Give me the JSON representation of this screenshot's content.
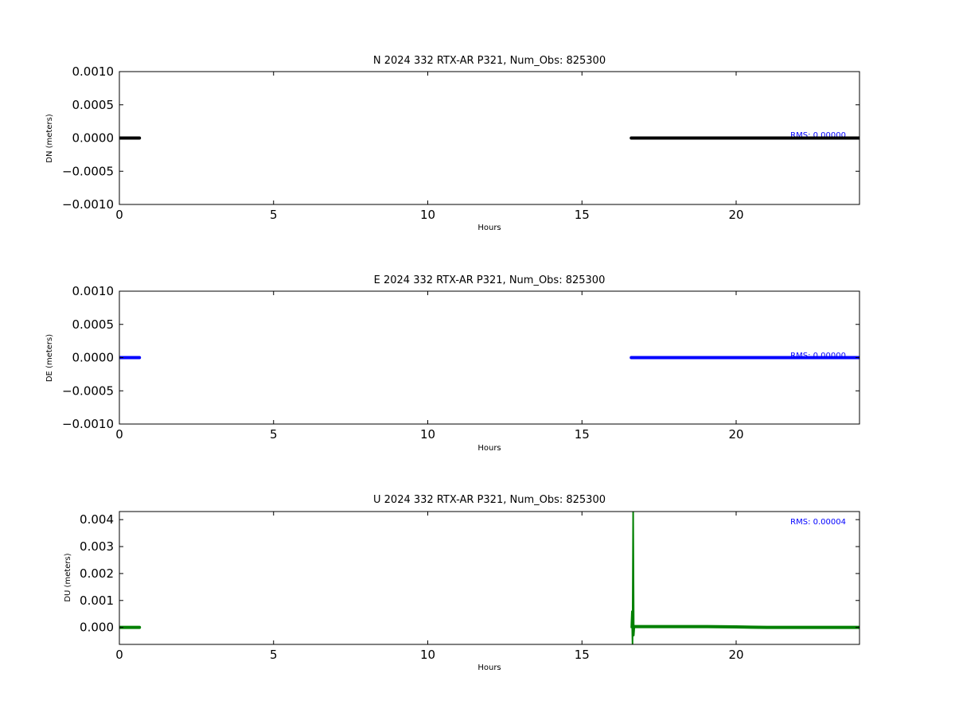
{
  "chart_data": [
    {
      "type": "scatter",
      "title": "N 2024 332 RTX-AR  P321, Num_Obs: 825300",
      "xlabel": "Hours",
      "ylabel": "DN (meters)",
      "xlim": [
        0,
        24
      ],
      "ylim": [
        -0.001,
        0.001
      ],
      "xticks": [
        0,
        5,
        10,
        15,
        20
      ],
      "xtick_labels": [
        "0",
        "5",
        "10",
        "15",
        "20"
      ],
      "yticks": [
        0.001,
        0.0005,
        0.0,
        -0.0005,
        -0.001
      ],
      "ytick_labels": [
        "0.0010",
        "0.0005",
        "0.0000",
        "−0.0005",
        "−0.0010"
      ],
      "grid": false,
      "color": "#000000",
      "annotation": "RMS:  0.00000",
      "annotation_color": "#0000ff",
      "series": [
        {
          "x": [
            0,
            0.65
          ],
          "y": [
            0.0,
            0.0
          ]
        },
        {
          "x": [
            16.6,
            24
          ],
          "y": [
            0.0,
            0.0
          ]
        }
      ]
    },
    {
      "type": "scatter",
      "title": "E 2024 332 RTX-AR  P321, Num_Obs: 825300",
      "xlabel": "Hours",
      "ylabel": "DE (meters)",
      "xlim": [
        0,
        24
      ],
      "ylim": [
        -0.001,
        0.001
      ],
      "xticks": [
        0,
        5,
        10,
        15,
        20
      ],
      "xtick_labels": [
        "0",
        "5",
        "10",
        "15",
        "20"
      ],
      "yticks": [
        0.001,
        0.0005,
        0.0,
        -0.0005,
        -0.001
      ],
      "ytick_labels": [
        "0.0010",
        "0.0005",
        "0.0000",
        "−0.0005",
        "−0.0010"
      ],
      "grid": false,
      "color": "#0000ff",
      "annotation": "RMS:  0.00000",
      "annotation_color": "#0000ff",
      "series": [
        {
          "x": [
            0,
            0.65
          ],
          "y": [
            0.0,
            0.0
          ]
        },
        {
          "x": [
            16.6,
            24
          ],
          "y": [
            0.0,
            0.0
          ]
        }
      ]
    },
    {
      "type": "scatter",
      "title": "U 2024 332 RTX-AR  P321, Num_Obs: 825300",
      "xlabel": "Hours",
      "ylabel": "DU (meters)",
      "xlim": [
        0,
        24
      ],
      "ylim": [
        -0.00063,
        0.0043
      ],
      "xticks": [
        0,
        5,
        10,
        15,
        20
      ],
      "xtick_labels": [
        "0",
        "5",
        "10",
        "15",
        "20"
      ],
      "yticks": [
        0.004,
        0.003,
        0.002,
        0.001,
        0.0
      ],
      "ytick_labels": [
        "0.004",
        "0.003",
        "0.002",
        "0.001",
        "0.000"
      ],
      "grid": false,
      "color": "#008000",
      "annotation": "RMS:  0.00004",
      "annotation_color": "#0000ff",
      "series": [
        {
          "x": [
            0,
            0.65
          ],
          "y": [
            0.0,
            0.0
          ]
        },
        {
          "x": [
            16.6,
            16.62,
            16.64,
            16.66,
            16.68,
            16.7,
            16.75,
            17,
            18,
            19,
            20,
            20.5,
            21,
            22,
            23,
            24
          ],
          "y": [
            0.0,
            0.0006,
            -0.0006,
            0.0043,
            -0.0003,
            3e-05,
            3e-05,
            3e-05,
            3e-05,
            3e-05,
            2e-05,
            1e-05,
            0.0,
            0.0,
            0.0,
            0.0
          ]
        }
      ]
    }
  ]
}
